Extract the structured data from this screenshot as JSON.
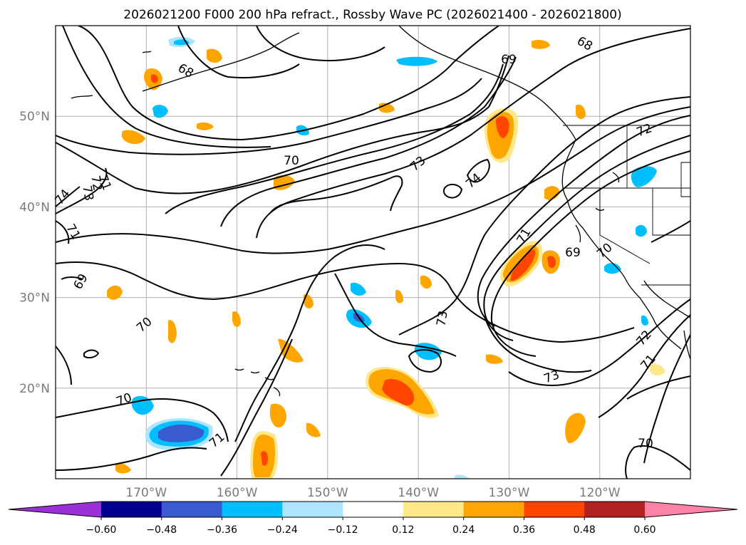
{
  "title": "2026021200 F000 200 hPa refract., Rossby Wave PC (2026021400 - 2026021800)",
  "axes": {
    "lon_ticks": [
      "170°W",
      "160°W",
      "150°W",
      "140°W",
      "130°W",
      "120°W"
    ],
    "lat_ticks": [
      "50°N",
      "40°N",
      "30°N",
      "20°N"
    ],
    "lon_range": [
      -180,
      -110
    ],
    "lat_range": [
      10,
      60
    ],
    "grid": true
  },
  "colorbar": {
    "colors": [
      "#9b30d9",
      "#000090",
      "#3a5bd0",
      "#00bfff",
      "#ade4ff",
      "#ffffff",
      "#ffe88a",
      "#ffa500",
      "#ff4500",
      "#b22222",
      "#ff82a9"
    ],
    "labels": [
      "−0.60",
      "−0.48",
      "−0.36",
      "−0.24",
      "−0.12",
      "0.12",
      "0.24",
      "0.36",
      "0.48",
      "0.60"
    ],
    "extend": "both"
  },
  "contour_labels": [
    "68",
    "68",
    "69",
    "71",
    "72",
    "70",
    "73",
    "74",
    "71",
    "69",
    "70",
    "74",
    "73",
    "72",
    "71",
    "69",
    "70",
    "73",
    "72",
    "71",
    "70",
    "71",
    "70"
  ]
}
